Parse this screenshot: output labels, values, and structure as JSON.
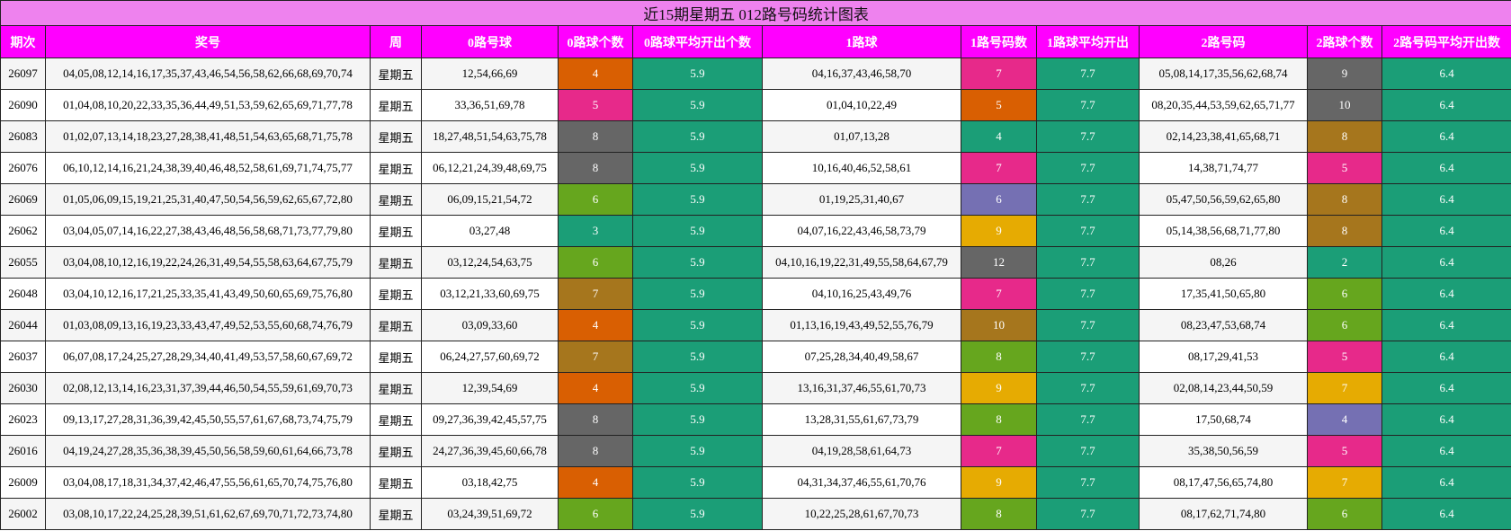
{
  "title": "近15期星期五 012路号码统计图表",
  "table": {
    "headers": [
      "期次",
      "奖号",
      "周",
      "0路号球",
      "0路球个数",
      "0路球平均开出个数",
      "1路球",
      "1路号码数",
      "1路球平均开出",
      "2路号码",
      "2路球个数",
      "2路号码平均开出数"
    ],
    "avg_color": "#1b9e77",
    "rows": [
      [
        26097,
        "04,05,08,12,14,16,17,35,37,43,46,54,56,58,62,66,68,69,70,74",
        "星期五",
        "12,54,66,69",
        4,
        5.9,
        "04,16,37,43,46,58,70",
        7,
        7.7,
        "05,08,14,17,35,56,62,68,74",
        9,
        6.4
      ],
      [
        26090,
        "01,04,08,10,20,22,33,35,36,44,49,51,53,59,62,65,69,71,77,78",
        "星期五",
        "33,36,51,69,78",
        5,
        5.9,
        "01,04,10,22,49",
        5,
        7.7,
        "08,20,35,44,53,59,62,65,71,77",
        10,
        6.4
      ],
      [
        26083,
        "01,02,07,13,14,18,23,27,28,38,41,48,51,54,63,65,68,71,75,78",
        "星期五",
        "18,27,48,51,54,63,75,78",
        8,
        5.9,
        "01,07,13,28",
        4,
        7.7,
        "02,14,23,38,41,65,68,71",
        8,
        6.4
      ],
      [
        26076,
        "06,10,12,14,16,21,24,38,39,40,46,48,52,58,61,69,71,74,75,77",
        "星期五",
        "06,12,21,24,39,48,69,75",
        8,
        5.9,
        "10,16,40,46,52,58,61",
        7,
        7.7,
        "14,38,71,74,77",
        5,
        6.4
      ],
      [
        26069,
        "01,05,06,09,15,19,21,25,31,40,47,50,54,56,59,62,65,67,72,80",
        "星期五",
        "06,09,15,21,54,72",
        6,
        5.9,
        "01,19,25,31,40,67",
        6,
        7.7,
        "05,47,50,56,59,62,65,80",
        8,
        6.4
      ],
      [
        26062,
        "03,04,05,07,14,16,22,27,38,43,46,48,56,58,68,71,73,77,79,80",
        "星期五",
        "03,27,48",
        3,
        5.9,
        "04,07,16,22,43,46,58,73,79",
        9,
        7.7,
        "05,14,38,56,68,71,77,80",
        8,
        6.4
      ],
      [
        26055,
        "03,04,08,10,12,16,19,22,24,26,31,49,54,55,58,63,64,67,75,79",
        "星期五",
        "03,12,24,54,63,75",
        6,
        5.9,
        "04,10,16,19,22,31,49,55,58,64,67,79",
        12,
        7.7,
        "08,26",
        2,
        6.4
      ],
      [
        26048,
        "03,04,10,12,16,17,21,25,33,35,41,43,49,50,60,65,69,75,76,80",
        "星期五",
        "03,12,21,33,60,69,75",
        7,
        5.9,
        "04,10,16,25,43,49,76",
        7,
        7.7,
        "17,35,41,50,65,80",
        6,
        6.4
      ],
      [
        26044,
        "01,03,08,09,13,16,19,23,33,43,47,49,52,53,55,60,68,74,76,79",
        "星期五",
        "03,09,33,60",
        4,
        5.9,
        "01,13,16,19,43,49,52,55,76,79",
        10,
        7.7,
        "08,23,47,53,68,74",
        6,
        6.4
      ],
      [
        26037,
        "06,07,08,17,24,25,27,28,29,34,40,41,49,53,57,58,60,67,69,72",
        "星期五",
        "06,24,27,57,60,69,72",
        7,
        5.9,
        "07,25,28,34,40,49,58,67",
        8,
        7.7,
        "08,17,29,41,53",
        5,
        6.4
      ],
      [
        26030,
        "02,08,12,13,14,16,23,31,37,39,44,46,50,54,55,59,61,69,70,73",
        "星期五",
        "12,39,54,69",
        4,
        5.9,
        "13,16,31,37,46,55,61,70,73",
        9,
        7.7,
        "02,08,14,23,44,50,59",
        7,
        6.4
      ],
      [
        26023,
        "09,13,17,27,28,31,36,39,42,45,50,55,57,61,67,68,73,74,75,79",
        "星期五",
        "09,27,36,39,42,45,57,75",
        8,
        5.9,
        "13,28,31,55,61,67,73,79",
        8,
        7.7,
        "17,50,68,74",
        4,
        6.4
      ],
      [
        26016,
        "04,19,24,27,28,35,36,38,39,45,50,56,58,59,60,61,64,66,73,78",
        "星期五",
        "24,27,36,39,45,60,66,78",
        8,
        5.9,
        "04,19,28,58,61,64,73",
        7,
        7.7,
        "35,38,50,56,59",
        5,
        6.4
      ],
      [
        26009,
        "03,04,08,17,18,31,34,37,42,46,47,55,56,61,65,70,74,75,76,80",
        "星期五",
        "03,18,42,75",
        4,
        5.9,
        "04,31,34,37,46,55,61,70,76",
        9,
        7.7,
        "08,17,47,56,65,74,80",
        7,
        6.4
      ],
      [
        26002,
        "03,08,10,17,22,24,25,28,39,51,61,62,67,69,70,71,72,73,74,80",
        "星期五",
        "03,24,39,51,69,72",
        6,
        5.9,
        "10,22,25,28,61,67,70,73",
        8,
        7.7,
        "08,17,62,71,74,80",
        6,
        6.4
      ]
    ],
    "count_colors": [
      [
        "#d95f02",
        "#e7298a",
        "#666666"
      ],
      [
        "#e7298a",
        "#d95f02",
        "#666666"
      ],
      [
        "#666666",
        "#1b9e77",
        "#a6761d"
      ],
      [
        "#666666",
        "#e7298a",
        "#e7298a"
      ],
      [
        "#66a61e",
        "#7570b3",
        "#a6761d"
      ],
      [
        "#1b9e77",
        "#e6ab02",
        "#a6761d"
      ],
      [
        "#66a61e",
        "#666666",
        "#1b9e77"
      ],
      [
        "#a6761d",
        "#e7298a",
        "#66a61e"
      ],
      [
        "#d95f02",
        "#a6761d",
        "#66a61e"
      ],
      [
        "#a6761d",
        "#66a61e",
        "#e7298a"
      ],
      [
        "#d95f02",
        "#e6ab02",
        "#e6ab02"
      ],
      [
        "#666666",
        "#66a61e",
        "#7570b3"
      ],
      [
        "#666666",
        "#e7298a",
        "#e7298a"
      ],
      [
        "#d95f02",
        "#e6ab02",
        "#e6ab02"
      ],
      [
        "#66a61e",
        "#66a61e",
        "#66a61e"
      ]
    ]
  }
}
